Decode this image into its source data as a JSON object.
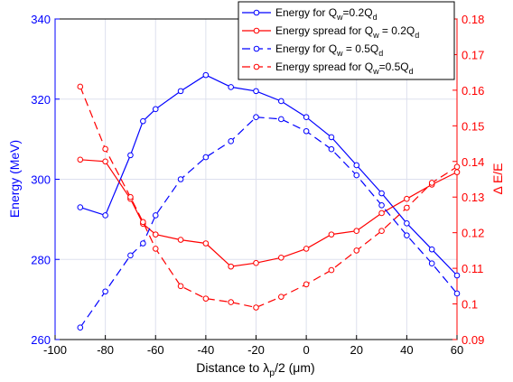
{
  "chart_data": {
    "type": "line",
    "xlabel": "Distance to λp/2 (μm)",
    "ylabel_left": "Energy (MeV)",
    "ylabel_right": "Δ E/E",
    "xlim": [
      -100,
      60
    ],
    "ylim_left": [
      260,
      340
    ],
    "ylim_right": [
      0.09,
      0.18
    ],
    "x_ticks": [
      "-100",
      "-80",
      "-60",
      "-40",
      "-20",
      "0",
      "20",
      "40",
      "60"
    ],
    "y_left_ticks": [
      "260",
      "280",
      "300",
      "320",
      "340"
    ],
    "y_right_ticks": [
      "0.09",
      "0.1",
      "0.11",
      "0.12",
      "0.13",
      "0.14",
      "0.15",
      "0.16",
      "0.17",
      "0.18"
    ],
    "grid": true,
    "legend_position": "top-right",
    "colors": {
      "energy": "#0000ff",
      "spread": "#ff0000"
    },
    "legend": [
      {
        "pre": "Energy for Q",
        "sub1": "w",
        "mid": "=0.2Q",
        "sub2": "d"
      },
      {
        "pre": "Energy spread for Q",
        "sub1": "w",
        "mid": " = 0.2Q",
        "sub2": "d"
      },
      {
        "pre": "Energy for Q",
        "sub1": "w",
        "mid": " = 0.5Q",
        "sub2": "d"
      },
      {
        "pre": "Energy spread for Q",
        "sub1": "w",
        "mid": "=0.5Q",
        "sub2": "d"
      }
    ],
    "series": [
      {
        "axis": "left",
        "color": "#0000ff",
        "dash": "solid",
        "x": [
          -90,
          -80,
          -70,
          -65,
          -60,
          -50,
          -40,
          -30,
          -20,
          -10,
          0,
          10,
          20,
          30,
          40,
          50,
          60
        ],
        "values": [
          293,
          291,
          306,
          314.5,
          317.5,
          322,
          326,
          323,
          322,
          319.5,
          315.5,
          310.5,
          303.5,
          296.5,
          289,
          282.5,
          276
        ]
      },
      {
        "axis": "right",
        "color": "#ff0000",
        "dash": "solid",
        "x": [
          -90,
          -80,
          -70,
          -65,
          -60,
          -50,
          -40,
          -30,
          -20,
          -10,
          0,
          10,
          20,
          30,
          40,
          50,
          60
        ],
        "values": [
          0.1405,
          0.14,
          0.1295,
          0.1225,
          0.1195,
          0.118,
          0.117,
          0.1105,
          0.1115,
          0.113,
          0.1155,
          0.1195,
          0.1205,
          0.1255,
          0.1295,
          0.1335,
          0.137
        ]
      },
      {
        "axis": "left",
        "color": "#0000ff",
        "dash": "dashed",
        "x": [
          -90,
          -80,
          -70,
          -65,
          -60,
          -50,
          -40,
          -30,
          -20,
          -10,
          0,
          10,
          20,
          30,
          40,
          50,
          60
        ],
        "values": [
          263,
          272,
          281,
          284,
          291,
          300,
          305.5,
          309.5,
          315.5,
          315,
          312,
          307.5,
          301,
          293.5,
          286,
          279,
          271.5
        ]
      },
      {
        "axis": "right",
        "color": "#ff0000",
        "dash": "dashed",
        "x": [
          -90,
          -80,
          -70,
          -65,
          -60,
          -50,
          -40,
          -30,
          -20,
          -10,
          0,
          10,
          20,
          30,
          40,
          50,
          60
        ],
        "values": [
          0.161,
          0.1435,
          0.13,
          0.123,
          0.1155,
          0.105,
          0.1015,
          0.1005,
          0.099,
          0.102,
          0.1055,
          0.1095,
          0.115,
          0.1205,
          0.127,
          0.134,
          0.1385
        ]
      }
    ]
  }
}
